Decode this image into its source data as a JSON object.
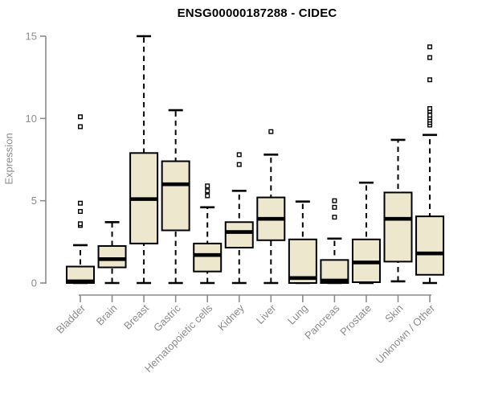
{
  "chart_data": {
    "type": "boxplot",
    "title": "ENSG00000187288 - CIDEC",
    "ylabel": "Expression",
    "xlabel": "",
    "ylim": [
      0,
      15
    ],
    "yticks": [
      0,
      5,
      10,
      15
    ],
    "grid": false,
    "legend": false,
    "categories": [
      "Bladder",
      "Brain",
      "Breast",
      "Gastric",
      "Hematopoietic cells",
      "Kidney",
      "Liver",
      "Lung",
      "Pancreas",
      "Prostate",
      "Skin",
      "Unknown / Other"
    ],
    "series": [
      {
        "name": "Bladder",
        "whisker_low": 0,
        "q1": 0,
        "median": 0.1,
        "q3": 1.0,
        "whisker_high": 2.3,
        "outliers": [
          3.5,
          3.6,
          4.35,
          4.85,
          9.5,
          10.1
        ]
      },
      {
        "name": "Brain",
        "whisker_low": 0,
        "q1": 0.95,
        "median": 1.45,
        "q3": 2.25,
        "whisker_high": 3.7,
        "outliers": []
      },
      {
        "name": "Breast",
        "whisker_low": 0,
        "q1": 2.4,
        "median": 5.1,
        "q3": 7.9,
        "whisker_high": 15.0,
        "outliers": []
      },
      {
        "name": "Gastric",
        "whisker_low": 0,
        "q1": 3.2,
        "median": 6.0,
        "q3": 7.4,
        "whisker_high": 10.5,
        "outliers": []
      },
      {
        "name": "Hematopoietic cells",
        "whisker_low": 0,
        "q1": 0.7,
        "median": 1.7,
        "q3": 2.4,
        "whisker_high": 4.6,
        "outliers": [
          5.3,
          5.6,
          5.9
        ]
      },
      {
        "name": "Kidney",
        "whisker_low": 0,
        "q1": 2.15,
        "median": 3.1,
        "q3": 3.7,
        "whisker_high": 5.6,
        "outliers": [
          7.2,
          7.8
        ]
      },
      {
        "name": "Liver",
        "whisker_low": 0,
        "q1": 2.6,
        "median": 3.9,
        "q3": 5.2,
        "whisker_high": 7.8,
        "outliers": [
          9.2
        ]
      },
      {
        "name": "Lung",
        "whisker_low": 0,
        "q1": 0,
        "median": 0.3,
        "q3": 2.65,
        "whisker_high": 4.95,
        "outliers": []
      },
      {
        "name": "Pancreas",
        "whisker_low": 0,
        "q1": 0,
        "median": 0.15,
        "q3": 1.4,
        "whisker_high": 2.7,
        "outliers": [
          4.0,
          4.6,
          5.0
        ]
      },
      {
        "name": "Prostate",
        "whisker_low": 0,
        "q1": 0.05,
        "median": 1.25,
        "q3": 2.65,
        "whisker_high": 6.1,
        "outliers": []
      },
      {
        "name": "Skin",
        "whisker_low": 0.1,
        "q1": 1.3,
        "median": 3.9,
        "q3": 5.5,
        "whisker_high": 8.7,
        "outliers": []
      },
      {
        "name": "Unknown / Other",
        "whisker_low": 0,
        "q1": 0.5,
        "median": 1.8,
        "q3": 4.05,
        "whisker_high": 9.0,
        "outliers": [
          9.6,
          9.75,
          9.9,
          10.05,
          10.2,
          10.45,
          10.6,
          12.35,
          13.7,
          14.35
        ]
      }
    ]
  },
  "colors": {
    "background": "#FFFFFF",
    "box_fill": "#EDE8CD",
    "box_border": "#000000",
    "median": "#000000",
    "whisker": "#000000",
    "outlier_fill": "#FFFFFF",
    "axis": "#8C8C8C",
    "tick_label": "#8C8C8C",
    "title": "#000000"
  }
}
